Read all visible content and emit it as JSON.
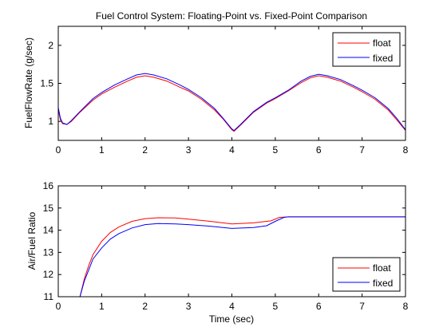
{
  "chart_data": [
    {
      "type": "line",
      "title": "Fuel Control System: Floating-Point vs. Fixed-Point Comparison",
      "xlabel": "",
      "ylabel": "FuelFlowRate (g/sec)",
      "xlim": [
        0,
        8
      ],
      "ylim": [
        0.75,
        2.25
      ],
      "xticks": [
        0,
        1,
        2,
        3,
        4,
        5,
        6,
        7,
        8
      ],
      "yticks": [
        1,
        1.5,
        2
      ],
      "ytick_labels": [
        "1",
        "1.5",
        "2"
      ],
      "grid": false,
      "legend_position": "top-right",
      "series": [
        {
          "name": "float",
          "color": "#ff0000",
          "points": [
            [
              0,
              1.15
            ],
            [
              0.05,
              1.02
            ],
            [
              0.1,
              0.97
            ],
            [
              0.2,
              0.96
            ],
            [
              0.3,
              1.0
            ],
            [
              0.5,
              1.12
            ],
            [
              0.8,
              1.28
            ],
            [
              1.0,
              1.36
            ],
            [
              1.3,
              1.45
            ],
            [
              1.6,
              1.53
            ],
            [
              1.8,
              1.58
            ],
            [
              2.0,
              1.6
            ],
            [
              2.2,
              1.58
            ],
            [
              2.5,
              1.53
            ],
            [
              2.8,
              1.45
            ],
            [
              3.0,
              1.4
            ],
            [
              3.3,
              1.29
            ],
            [
              3.6,
              1.15
            ],
            [
              3.8,
              1.03
            ],
            [
              4.0,
              0.89
            ],
            [
              4.05,
              0.87
            ],
            [
              4.2,
              0.95
            ],
            [
              4.5,
              1.12
            ],
            [
              4.8,
              1.24
            ],
            [
              5.0,
              1.3
            ],
            [
              5.3,
              1.4
            ],
            [
              5.6,
              1.51
            ],
            [
              5.8,
              1.57
            ],
            [
              6.0,
              1.6
            ],
            [
              6.2,
              1.58
            ],
            [
              6.5,
              1.53
            ],
            [
              6.8,
              1.45
            ],
            [
              7.0,
              1.39
            ],
            [
              7.3,
              1.29
            ],
            [
              7.6,
              1.15
            ],
            [
              7.8,
              1.02
            ],
            [
              8.0,
              0.88
            ]
          ]
        },
        {
          "name": "fixed",
          "color": "#0000ff",
          "points": [
            [
              0,
              1.18
            ],
            [
              0.05,
              1.04
            ],
            [
              0.1,
              0.98
            ],
            [
              0.2,
              0.96
            ],
            [
              0.3,
              1.01
            ],
            [
              0.5,
              1.13
            ],
            [
              0.8,
              1.3
            ],
            [
              1.0,
              1.38
            ],
            [
              1.3,
              1.48
            ],
            [
              1.6,
              1.56
            ],
            [
              1.8,
              1.61
            ],
            [
              2.0,
              1.63
            ],
            [
              2.2,
              1.61
            ],
            [
              2.5,
              1.56
            ],
            [
              2.8,
              1.48
            ],
            [
              3.0,
              1.42
            ],
            [
              3.3,
              1.31
            ],
            [
              3.6,
              1.17
            ],
            [
              3.8,
              1.04
            ],
            [
              4.0,
              0.9
            ],
            [
              4.05,
              0.88
            ],
            [
              4.2,
              0.96
            ],
            [
              4.5,
              1.13
            ],
            [
              4.8,
              1.25
            ],
            [
              5.0,
              1.31
            ],
            [
              5.3,
              1.41
            ],
            [
              5.6,
              1.53
            ],
            [
              5.8,
              1.59
            ],
            [
              6.0,
              1.62
            ],
            [
              6.2,
              1.6
            ],
            [
              6.5,
              1.55
            ],
            [
              6.8,
              1.47
            ],
            [
              7.0,
              1.41
            ],
            [
              7.3,
              1.31
            ],
            [
              7.6,
              1.17
            ],
            [
              7.8,
              1.04
            ],
            [
              8.0,
              0.89
            ]
          ]
        }
      ]
    },
    {
      "type": "line",
      "title": "",
      "xlabel": "Time (sec)",
      "ylabel": "Air/Fuel Ratio",
      "xlim": [
        0,
        8
      ],
      "ylim": [
        11,
        16
      ],
      "xticks": [
        0,
        1,
        2,
        3,
        4,
        5,
        6,
        7,
        8
      ],
      "yticks": [
        11,
        12,
        13,
        14,
        15,
        16
      ],
      "ytick_labels": [
        "11",
        "12",
        "13",
        "14",
        "15",
        "16"
      ],
      "grid": false,
      "legend_position": "bottom-right",
      "series": [
        {
          "name": "float",
          "color": "#ff0000",
          "points": [
            [
              0.5,
              11.0
            ],
            [
              0.6,
              11.8
            ],
            [
              0.7,
              12.4
            ],
            [
              0.8,
              12.9
            ],
            [
              1.0,
              13.5
            ],
            [
              1.2,
              13.9
            ],
            [
              1.4,
              14.15
            ],
            [
              1.7,
              14.4
            ],
            [
              2.0,
              14.52
            ],
            [
              2.3,
              14.56
            ],
            [
              2.7,
              14.55
            ],
            [
              3.0,
              14.5
            ],
            [
              3.5,
              14.4
            ],
            [
              4.0,
              14.28
            ],
            [
              4.5,
              14.33
            ],
            [
              4.9,
              14.42
            ],
            [
              5.1,
              14.58
            ],
            [
              5.3,
              14.6
            ],
            [
              6.0,
              14.6
            ],
            [
              7.0,
              14.6
            ],
            [
              8.0,
              14.6
            ]
          ]
        },
        {
          "name": "fixed",
          "color": "#0000ff",
          "points": [
            [
              0.5,
              11.0
            ],
            [
              0.6,
              11.7
            ],
            [
              0.7,
              12.2
            ],
            [
              0.8,
              12.7
            ],
            [
              1.0,
              13.2
            ],
            [
              1.2,
              13.6
            ],
            [
              1.4,
              13.85
            ],
            [
              1.7,
              14.1
            ],
            [
              2.0,
              14.25
            ],
            [
              2.3,
              14.3
            ],
            [
              2.7,
              14.28
            ],
            [
              3.0,
              14.25
            ],
            [
              3.5,
              14.18
            ],
            [
              4.0,
              14.08
            ],
            [
              4.5,
              14.12
            ],
            [
              4.8,
              14.2
            ],
            [
              5.0,
              14.4
            ],
            [
              5.2,
              14.58
            ],
            [
              5.3,
              14.6
            ],
            [
              6.0,
              14.6
            ],
            [
              7.0,
              14.6
            ],
            [
              8.0,
              14.6
            ]
          ]
        }
      ]
    }
  ]
}
